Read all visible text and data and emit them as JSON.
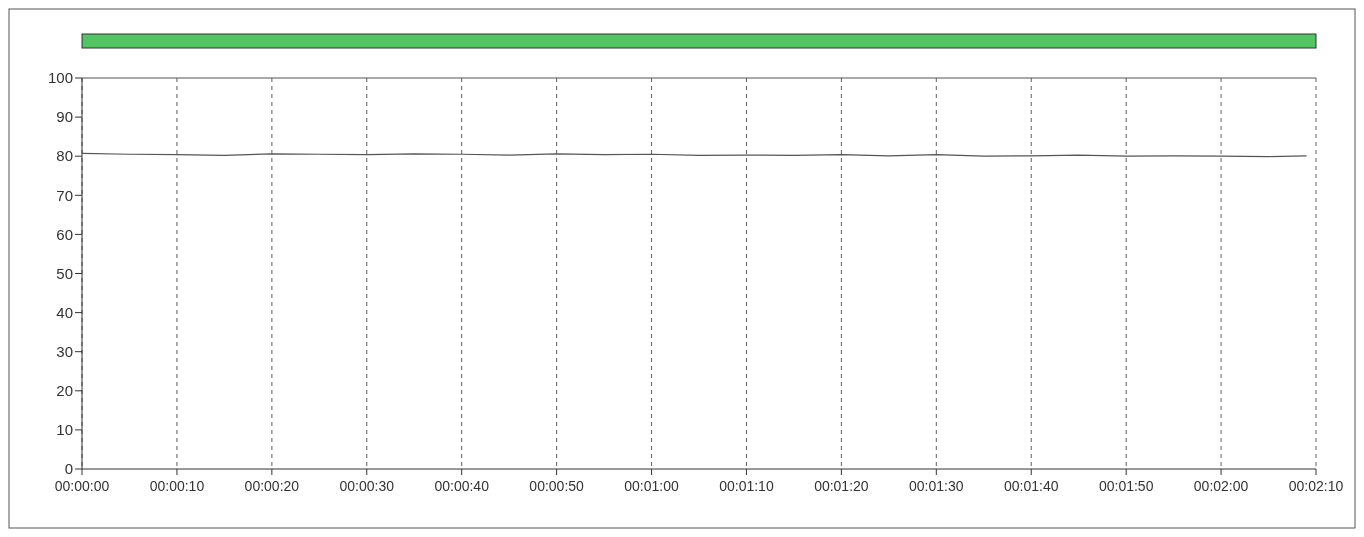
{
  "chart_data": {
    "type": "line",
    "x": [
      0,
      0.001389,
      0.002778,
      0.004167,
      0.005556,
      0.006944,
      0.008333,
      0.009722,
      0.011111,
      0.0125,
      0.013889,
      0.015278,
      0.016667,
      0.018056,
      0.019444,
      0.020833,
      0.022222,
      0.023611,
      0.025,
      0.026389,
      0.027778,
      0.029167,
      0.030556,
      0.031944,
      0.033333,
      0.034722,
      0.035833
    ],
    "series": [
      {
        "color": "#555555",
        "values": [
          80.7,
          80.5,
          80.4,
          80.2,
          80.6,
          80.5,
          80.4,
          80.6,
          80.5,
          80.3,
          80.6,
          80.4,
          80.5,
          80.2,
          80.3,
          80.2,
          80.4,
          80.1,
          80.4,
          80.0,
          80.1,
          80.3,
          80.0,
          80.1,
          80.0,
          79.9,
          80.1
        ]
      }
    ],
    "xlim": [
      0,
      0.036111
    ],
    "ylim": [
      0,
      100
    ],
    "xticks": [
      {
        "value": 0,
        "label": "00:00:00"
      },
      {
        "value": 0.002778,
        "label": "00:00:10"
      },
      {
        "value": 0.005556,
        "label": "00:00:20"
      },
      {
        "value": 0.008333,
        "label": "00:00:30"
      },
      {
        "value": 0.011111,
        "label": "00:00:40"
      },
      {
        "value": 0.013889,
        "label": "00:00:50"
      },
      {
        "value": 0.016667,
        "label": "00:01:00"
      },
      {
        "value": 0.019444,
        "label": "00:01:10"
      },
      {
        "value": 0.022222,
        "label": "00:01:20"
      },
      {
        "value": 0.025,
        "label": "00:01:30"
      },
      {
        "value": 0.027778,
        "label": "00:01:40"
      },
      {
        "value": 0.030556,
        "label": "00:01:50"
      },
      {
        "value": 0.033333,
        "label": "00:02:00"
      },
      {
        "value": 0.036111,
        "label": "00:02:10"
      }
    ],
    "yticks": [
      0,
      10,
      20,
      30,
      40,
      50,
      60,
      70,
      80,
      90,
      100
    ],
    "grid": "x"
  }
}
